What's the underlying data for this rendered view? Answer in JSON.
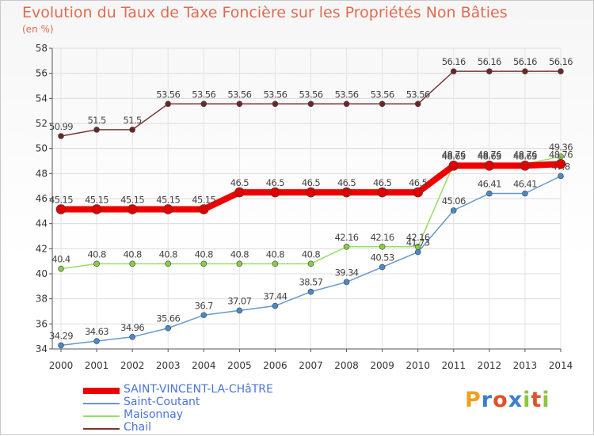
{
  "title": "Evolution du Taux de Taxe Foncière sur les Propriétés Non Bâties",
  "unit_label": "(en %)",
  "brand": "Proxiti",
  "chart_data": {
    "type": "line",
    "title": "Evolution du Taux de Taxe Foncière sur les Propriétés Non Bâties",
    "ylabel": "(en %)",
    "ylim": [
      34,
      58
    ],
    "yticks": [
      34,
      36,
      38,
      40,
      42,
      44,
      46,
      48,
      50,
      52,
      54,
      56,
      58
    ],
    "grid": true,
    "legend_position": "bottom-left",
    "x": [
      "2000",
      "2001",
      "2002",
      "2003",
      "2004",
      "2005",
      "2006",
      "2007",
      "2008",
      "2009",
      "2010",
      "2011",
      "2012",
      "2013",
      "2014"
    ],
    "series": [
      {
        "name": "Chail",
        "color": "#7a3535",
        "marker": "#6b2727",
        "width": 1.5,
        "values": [
          50.99,
          51.5,
          51.5,
          53.56,
          53.56,
          53.56,
          53.56,
          53.56,
          53.56,
          53.56,
          53.56,
          56.16,
          56.16,
          56.16,
          56.16
        ],
        "labels": [
          "50.99",
          "51.5",
          "51.5",
          "53.56",
          "53.56",
          "53.56",
          "53.56",
          "53.56",
          "53.56",
          "53.56",
          "53.56",
          "56.16",
          "56.16",
          "56.16",
          "56.16"
        ]
      },
      {
        "name": "Maisonnay",
        "color": "#99dd66",
        "marker": "#88cc44",
        "width": 1.5,
        "values": [
          40.4,
          40.8,
          40.8,
          40.8,
          40.8,
          40.8,
          40.8,
          40.8,
          42.16,
          42.16,
          42.16,
          48.76,
          48.76,
          48.76,
          49.36
        ],
        "labels": [
          "40.4",
          "40.8",
          "40.8",
          "40.8",
          "40.8",
          "40.8",
          "40.8",
          "40.8",
          "42.16",
          "42.16",
          "42.16",
          "48.76",
          "48.76",
          "48.76",
          "49.36"
        ]
      },
      {
        "name": "Saint-Coutant",
        "color": "#6699cc",
        "marker": "#4a88cc",
        "width": 1.5,
        "values": [
          34.29,
          34.63,
          34.96,
          35.66,
          36.7,
          37.07,
          37.44,
          38.57,
          39.34,
          40.53,
          41.73,
          45.06,
          46.41,
          46.41,
          47.8
        ],
        "labels": [
          "34.29",
          "34.63",
          "34.96",
          "35.66",
          "36.7",
          "37.07",
          "37.44",
          "38.57",
          "39.34",
          "40.53",
          "41.73",
          "45.06",
          "46.41",
          "46.41",
          "47.8"
        ]
      },
      {
        "name": "SAINT-VINCENT-LA-CHâTRE",
        "color": "#ee0000",
        "marker": "#dd0000",
        "width": 8,
        "values": [
          45.15,
          45.15,
          45.15,
          45.15,
          45.15,
          46.5,
          46.5,
          46.5,
          46.5,
          46.5,
          46.5,
          48.63,
          48.63,
          48.63,
          48.76
        ],
        "labels": [
          "45.15",
          "45.15",
          "45.15",
          "45.15",
          "45.15",
          "46.5",
          "46.5",
          "46.5",
          "46.5",
          "46.5",
          "46.5",
          "48.63",
          "48.63",
          "48.63",
          "48.76"
        ]
      }
    ],
    "legend_order": [
      "SAINT-VINCENT-LA-CHâTRE",
      "Saint-Coutant",
      "Maisonnay",
      "Chail"
    ]
  }
}
